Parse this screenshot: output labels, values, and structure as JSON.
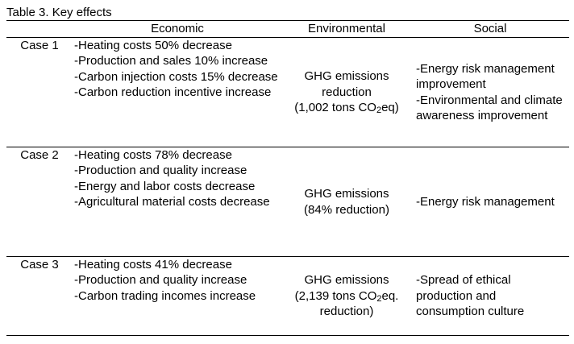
{
  "caption": "Table 3. Key effects",
  "headers": {
    "case": "",
    "economic": "Economic",
    "environmental": "Environmental",
    "social": "Social"
  },
  "rows": [
    {
      "case": "Case 1",
      "economic": [
        "-Heating costs 50% decrease",
        "-Production and sales 10% increase",
        "-Carbon injection costs 15% decrease",
        "-Carbon reduction incentive increase"
      ],
      "environmental": {
        "line1": "GHG emissions",
        "line2": "reduction",
        "line3_pre": "(1,002 tons CO",
        "line3_sub": "2",
        "line3_post": "eq)"
      },
      "social": [
        "-Energy risk management improvement",
        "-Environmental and climate awareness improvement"
      ]
    },
    {
      "case": "Case 2",
      "economic": [
        "-Heating costs 78% decrease",
        "-Production and quality increase",
        "-Energy and labor costs decrease",
        "-Agricultural material costs decrease"
      ],
      "environmental": {
        "line1": "GHG emissions",
        "line2": "(84% reduction)"
      },
      "social": [
        "-Energy risk management"
      ]
    },
    {
      "case": "Case 3",
      "economic": [
        "-Heating costs 41% decrease",
        "-Production and quality increase",
        "-Carbon trading incomes increase"
      ],
      "environmental": {
        "line1": "GHG emissions",
        "line2_pre": "(2,139 tons CO",
        "line2_sub": "2",
        "line2_post": "eq.",
        "line3": "reduction)"
      },
      "social": [
        "-Spread of ethical production and consumption culture"
      ]
    }
  ]
}
